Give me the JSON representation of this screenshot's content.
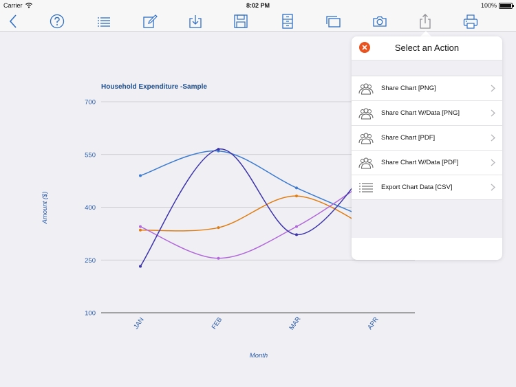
{
  "status_bar": {
    "carrier": "Carrier",
    "time": "8:02 PM",
    "battery": "100%"
  },
  "toolbar": {
    "buttons": [
      {
        "name": "back",
        "icon": "chevron-left-icon"
      },
      {
        "name": "help",
        "icon": "question-icon"
      },
      {
        "name": "list",
        "icon": "list-icon"
      },
      {
        "name": "edit",
        "icon": "pencil-icon"
      },
      {
        "name": "download",
        "icon": "download-icon"
      },
      {
        "name": "save",
        "icon": "floppy-icon"
      },
      {
        "name": "cabinet",
        "icon": "cabinet-icon"
      },
      {
        "name": "windows",
        "icon": "windows-icon"
      },
      {
        "name": "camera",
        "icon": "camera-icon"
      },
      {
        "name": "share",
        "icon": "share-icon"
      },
      {
        "name": "print",
        "icon": "printer-icon"
      }
    ],
    "accent": "#2f6fc2"
  },
  "popover": {
    "title": "Select an Action",
    "close_color": "#e8531f",
    "items": [
      {
        "label": "Share Chart [PNG]",
        "icon": "people-icon"
      },
      {
        "label": "Share Chart W/Data [PNG]",
        "icon": "people-icon"
      },
      {
        "label": "Share Chart [PDF]",
        "icon": "people-icon"
      },
      {
        "label": "Share Chart W/Data [PDF]",
        "icon": "people-icon"
      },
      {
        "label": "Export Chart Data [CSV]",
        "icon": "list-icon"
      }
    ]
  },
  "chart_data": {
    "type": "line",
    "title": "Household Expenditure -Sample",
    "xlabel": "Month",
    "ylabel": "Amount ($)",
    "categories": [
      "JAN",
      "FEB",
      "MAR",
      "APR"
    ],
    "ylim": [
      100,
      700
    ],
    "yticks": [
      100,
      250,
      400,
      550,
      700
    ],
    "grid": true,
    "series": [
      {
        "color": "#3d7bd0",
        "values": [
          490,
          560,
          455,
          360
        ]
      },
      {
        "color": "#e07d12",
        "values": [
          335,
          342,
          432,
          330
        ]
      },
      {
        "color": "#b168d8",
        "values": [
          345,
          255,
          345,
          490
        ]
      },
      {
        "color": "#3d35a8",
        "values": [
          232,
          565,
          322,
          535
        ]
      }
    ]
  }
}
